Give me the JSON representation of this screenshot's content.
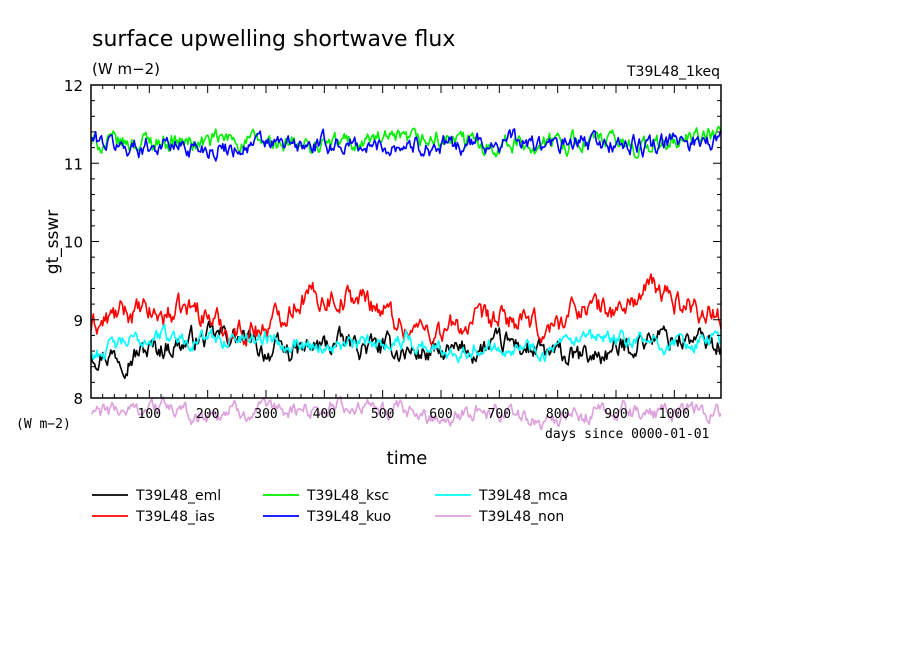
{
  "chart_data": {
    "type": "line",
    "title": "surface upwelling shortwave flux",
    "units": "(W m−2)",
    "experiment": "T39L48_1keq",
    "ylabel": "gt_sswr",
    "xlabel": "time",
    "x_units": "days since 0000-01-01",
    "y_units_left": "(W m−2)",
    "xlim": [
      0,
      1080
    ],
    "ylim": [
      8,
      12
    ],
    "y_ticks": [
      "8",
      "9",
      "10",
      "11",
      "12"
    ],
    "x_ticks": [
      "100",
      "200",
      "300",
      "400",
      "500",
      "600",
      "700",
      "800",
      "900",
      "1000"
    ],
    "legend_placement": "bottom",
    "series": [
      {
        "name": "T39L48_eml",
        "color": "#000000",
        "x": [
          0,
          60,
          120,
          180,
          240,
          300,
          360,
          420,
          480,
          540,
          600,
          660,
          720,
          780,
          840,
          900,
          960,
          1020,
          1080
        ],
        "values": [
          8.6,
          8.55,
          8.65,
          8.75,
          8.8,
          8.6,
          8.6,
          8.7,
          8.65,
          8.6,
          8.55,
          8.6,
          8.7,
          8.55,
          8.5,
          8.6,
          8.8,
          8.75,
          8.7
        ]
      },
      {
        "name": "T39L48_ias",
        "color": "#ff0000",
        "x": [
          0,
          60,
          120,
          180,
          240,
          300,
          360,
          420,
          480,
          540,
          600,
          660,
          720,
          780,
          840,
          900,
          960,
          1020,
          1080
        ],
        "values": [
          8.9,
          9.1,
          9.05,
          9.15,
          8.85,
          8.9,
          9.3,
          9.3,
          9.25,
          8.9,
          8.85,
          8.95,
          9.0,
          8.85,
          9.2,
          9.1,
          9.4,
          9.2,
          9.05
        ]
      },
      {
        "name": "T39L48_ksc",
        "color": "#00ee00",
        "x": [
          0,
          60,
          120,
          180,
          240,
          300,
          360,
          420,
          480,
          540,
          600,
          660,
          720,
          780,
          840,
          900,
          960,
          1020,
          1080
        ],
        "values": [
          11.25,
          11.25,
          11.3,
          11.25,
          11.3,
          11.25,
          11.2,
          11.25,
          11.3,
          11.25,
          11.3,
          11.25,
          11.25,
          11.25,
          11.3,
          11.25,
          11.2,
          11.3,
          11.35
        ]
      },
      {
        "name": "T39L48_kuo",
        "color": "#0000ff",
        "x": [
          0,
          60,
          120,
          180,
          240,
          300,
          360,
          420,
          480,
          540,
          600,
          660,
          720,
          780,
          840,
          900,
          960,
          1020,
          1080
        ],
        "values": [
          11.3,
          11.2,
          11.25,
          11.2,
          11.2,
          11.25,
          11.2,
          11.25,
          11.2,
          11.25,
          11.2,
          11.25,
          11.3,
          11.2,
          11.25,
          11.25,
          11.2,
          11.3,
          11.3
        ]
      },
      {
        "name": "T39L48_mca",
        "color": "#00ffff",
        "x": [
          0,
          60,
          120,
          180,
          240,
          300,
          360,
          420,
          480,
          540,
          600,
          660,
          720,
          780,
          840,
          900,
          960,
          1020,
          1080
        ],
        "values": [
          8.55,
          8.7,
          8.8,
          8.75,
          8.75,
          8.8,
          8.7,
          8.65,
          8.7,
          8.75,
          8.6,
          8.65,
          8.7,
          8.6,
          8.7,
          8.75,
          8.7,
          8.7,
          8.75
        ]
      },
      {
        "name": "T39L48_non",
        "color": "#dda0dd",
        "x": [
          0,
          60,
          120,
          180,
          240,
          300,
          360,
          420,
          480,
          540,
          600,
          660,
          720,
          780,
          840,
          900,
          960,
          1020,
          1080
        ],
        "values": [
          7.8,
          7.85,
          7.9,
          7.75,
          7.85,
          7.8,
          7.85,
          7.9,
          7.85,
          7.8,
          7.75,
          7.85,
          7.8,
          7.7,
          7.75,
          7.85,
          7.8,
          7.85,
          7.8
        ]
      }
    ]
  }
}
